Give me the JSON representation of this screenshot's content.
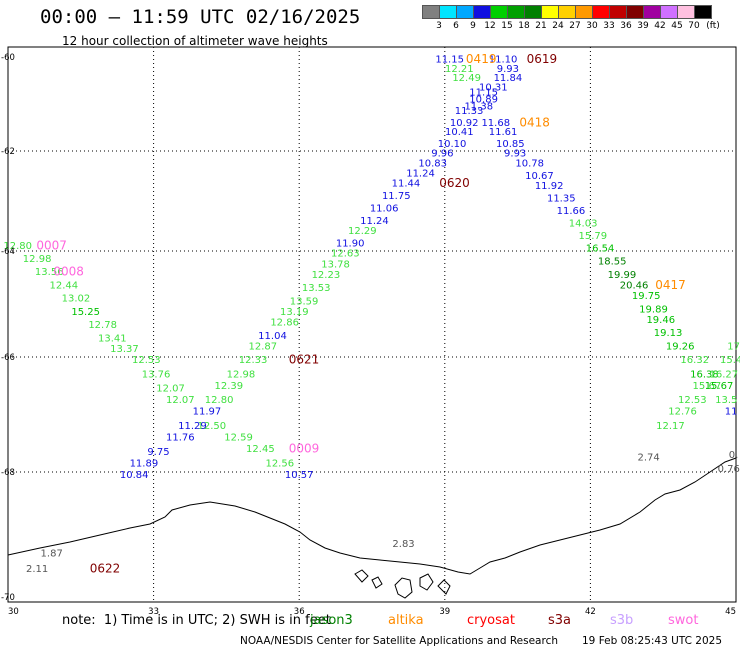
{
  "header": {
    "title": "00:00 – 11:59 UTC 02/16/2025",
    "subtitle": "12 hour collection of altimeter wave heights"
  },
  "colorbar": {
    "unit_label": "(ft)",
    "swatches": [
      {
        "label": "3",
        "color": "#808080"
      },
      {
        "label": "6",
        "color": "#00e5ff"
      },
      {
        "label": "9",
        "color": "#00a8ff"
      },
      {
        "label": "12",
        "color": "#1010e0"
      },
      {
        "label": "15",
        "color": "#00d000"
      },
      {
        "label": "18",
        "color": "#00a000"
      },
      {
        "label": "21",
        "color": "#008000"
      },
      {
        "label": "24",
        "color": "#ffff00"
      },
      {
        "label": "27",
        "color": "#ffd000"
      },
      {
        "label": "30",
        "color": "#ff9900"
      },
      {
        "label": "33",
        "color": "#ff0000"
      },
      {
        "label": "36",
        "color": "#c00000"
      },
      {
        "label": "39",
        "color": "#800000"
      },
      {
        "label": "42",
        "color": "#a000a0"
      },
      {
        "label": "45",
        "color": "#d070ff"
      },
      {
        "label": "70",
        "color": "#ffc0e0"
      },
      {
        "label": "",
        "color": "#000000"
      }
    ]
  },
  "axes": {
    "lat_labels": [
      "-60",
      "-62",
      "-64",
      "-66",
      "-68",
      "-70"
    ],
    "lon_labels": [
      "30",
      "33",
      "36",
      "39",
      "42",
      "45"
    ]
  },
  "observations": [
    {
      "text": "11.15",
      "lon": 39.1,
      "lat": -60.05,
      "color": "#1010e0"
    },
    {
      "text": "12.21",
      "lon": 39.3,
      "lat": -60.25,
      "color": "#40e040"
    },
    {
      "text": "12.49",
      "lon": 39.45,
      "lat": -60.45,
      "color": "#40e040"
    },
    {
      "text": "11.10",
      "lon": 40.2,
      "lat": -60.05,
      "color": "#1010e0"
    },
    {
      "text": "9.93",
      "lon": 40.3,
      "lat": -60.25,
      "color": "#1010e0"
    },
    {
      "text": "11.84",
      "lon": 40.3,
      "lat": -60.45,
      "color": "#1010e0"
    },
    {
      "text": "10.31",
      "lon": 40.0,
      "lat": -60.65,
      "color": "#1010e0"
    },
    {
      "text": "11.15",
      "lon": 39.8,
      "lat": -60.75,
      "color": "#1010e0"
    },
    {
      "text": "10.89",
      "lon": 39.8,
      "lat": -60.9,
      "color": "#1010e0"
    },
    {
      "text": "11.38",
      "lon": 39.7,
      "lat": -61.05,
      "color": "#1010e0"
    },
    {
      "text": "11.33",
      "lon": 39.5,
      "lat": -61.15,
      "color": "#1010e0"
    },
    {
      "text": "10.92",
      "lon": 39.4,
      "lat": -61.4,
      "color": "#1010e0"
    },
    {
      "text": "11.68",
      "lon": 40.05,
      "lat": -61.4,
      "color": "#1010e0"
    },
    {
      "text": "10.41",
      "lon": 39.3,
      "lat": -61.6,
      "color": "#1010e0"
    },
    {
      "text": "11.61",
      "lon": 40.2,
      "lat": -61.6,
      "color": "#1010e0"
    },
    {
      "text": "10.10",
      "lon": 39.15,
      "lat": -61.85,
      "color": "#1010e0"
    },
    {
      "text": "10.85",
      "lon": 40.35,
      "lat": -61.85,
      "color": "#1010e0"
    },
    {
      "text": "9.96",
      "lon": 38.95,
      "lat": -62.05,
      "color": "#1010e0"
    },
    {
      "text": "9.93",
      "lon": 40.45,
      "lat": -62.05,
      "color": "#1010e0"
    },
    {
      "text": "10.83",
      "lon": 38.75,
      "lat": -62.25,
      "color": "#1010e0"
    },
    {
      "text": "10.78",
      "lon": 40.75,
      "lat": -62.25,
      "color": "#1010e0"
    },
    {
      "text": "11.24",
      "lon": 38.5,
      "lat": -62.45,
      "color": "#1010e0"
    },
    {
      "text": "10.67",
      "lon": 40.95,
      "lat": -62.5,
      "color": "#1010e0"
    },
    {
      "text": "11.44",
      "lon": 38.2,
      "lat": -62.65,
      "color": "#1010e0"
    },
    {
      "text": "11.92",
      "lon": 41.15,
      "lat": -62.7,
      "color": "#1010e0"
    },
    {
      "text": "11.75",
      "lon": 38.0,
      "lat": -62.9,
      "color": "#1010e0"
    },
    {
      "text": "11.35",
      "lon": 41.4,
      "lat": -62.95,
      "color": "#1010e0"
    },
    {
      "text": "11.06",
      "lon": 37.75,
      "lat": -63.15,
      "color": "#1010e0"
    },
    {
      "text": "11.66",
      "lon": 41.6,
      "lat": -63.2,
      "color": "#1010e0"
    },
    {
      "text": "11.24",
      "lon": 37.55,
      "lat": -63.4,
      "color": "#1010e0"
    },
    {
      "text": "14.03",
      "lon": 41.85,
      "lat": -63.45,
      "color": "#40e040"
    },
    {
      "text": "12.29",
      "lon": 37.3,
      "lat": -63.6,
      "color": "#40e040"
    },
    {
      "text": "15.79",
      "lon": 42.05,
      "lat": -63.7,
      "color": "#40e040"
    },
    {
      "text": "11.90",
      "lon": 37.05,
      "lat": -63.85,
      "color": "#1010e0"
    },
    {
      "text": "16.54",
      "lon": 42.2,
      "lat": -63.95,
      "color": "#00c000"
    },
    {
      "text": "12.63",
      "lon": 36.95,
      "lat": -64.05,
      "color": "#40e040"
    },
    {
      "text": "18.55",
      "lon": 42.45,
      "lat": -64.2,
      "color": "#008000"
    },
    {
      "text": "13.78",
      "lon": 36.75,
      "lat": -64.25,
      "color": "#40e040"
    },
    {
      "text": "19.99",
      "lon": 42.65,
      "lat": -64.45,
      "color": "#008000"
    },
    {
      "text": "12.23",
      "lon": 36.55,
      "lat": -64.45,
      "color": "#40e040"
    },
    {
      "text": "20.46",
      "lon": 42.9,
      "lat": -64.65,
      "color": "#008000"
    },
    {
      "text": "13.53",
      "lon": 36.35,
      "lat": -64.7,
      "color": "#40e040"
    },
    {
      "text": "19.75",
      "lon": 43.15,
      "lat": -64.85,
      "color": "#00c000"
    },
    {
      "text": "13.59",
      "lon": 36.1,
      "lat": -64.95,
      "color": "#40e040"
    },
    {
      "text": "19.89",
      "lon": 43.3,
      "lat": -65.1,
      "color": "#00c000"
    },
    {
      "text": "13.19",
      "lon": 35.9,
      "lat": -65.15,
      "color": "#40e040"
    },
    {
      "text": "19.46",
      "lon": 43.45,
      "lat": -65.3,
      "color": "#00c000"
    },
    {
      "text": "12.86",
      "lon": 35.7,
      "lat": -65.35,
      "color": "#40e040"
    },
    {
      "text": "19.13",
      "lon": 43.6,
      "lat": -65.55,
      "color": "#00c000"
    },
    {
      "text": "11.04",
      "lon": 35.45,
      "lat": -65.6,
      "color": "#1010e0"
    },
    {
      "text": "19.26",
      "lon": 43.85,
      "lat": -65.8,
      "color": "#00c000"
    },
    {
      "text": "12.87",
      "lon": 35.25,
      "lat": -65.8,
      "color": "#40e040"
    },
    {
      "text": "12.33",
      "lon": 35.05,
      "lat": -66.05,
      "color": "#40e040"
    },
    {
      "text": "16.32",
      "lon": 44.15,
      "lat": -66.05,
      "color": "#40e040"
    },
    {
      "text": "12.98",
      "lon": 34.8,
      "lat": -66.3,
      "color": "#40e040"
    },
    {
      "text": "16.38",
      "lon": 44.35,
      "lat": -66.3,
      "color": "#00c000"
    },
    {
      "text": "16.27",
      "lon": 44.75,
      "lat": -66.3,
      "color": "#40e040"
    },
    {
      "text": "12.39",
      "lon": 34.55,
      "lat": -66.5,
      "color": "#40e040"
    },
    {
      "text": "15.67",
      "lon": 44.4,
      "lat": -66.5,
      "color": "#40e040"
    },
    {
      "text": "15.67",
      "lon": 44.65,
      "lat": -66.5,
      "color": "#00c000"
    },
    {
      "text": "12.80",
      "lon": 34.35,
      "lat": -66.75,
      "color": "#40e040"
    },
    {
      "text": "12.53",
      "lon": 44.1,
      "lat": -66.75,
      "color": "#40e040"
    },
    {
      "text": "11.97",
      "lon": 34.1,
      "lat": -66.95,
      "color": "#1010e0"
    },
    {
      "text": "12.76",
      "lon": 43.9,
      "lat": -66.95,
      "color": "#40e040"
    },
    {
      "text": "12.50",
      "lon": 34.2,
      "lat": -67.2,
      "color": "#40e040"
    },
    {
      "text": "12.17",
      "lon": 43.65,
      "lat": -67.2,
      "color": "#40e040"
    },
    {
      "text": "12.59",
      "lon": 34.75,
      "lat": -67.4,
      "color": "#40e040"
    },
    {
      "text": "12.45",
      "lon": 35.2,
      "lat": -67.6,
      "color": "#40e040"
    },
    {
      "text": "12.56",
      "lon": 35.6,
      "lat": -67.85,
      "color": "#40e040"
    },
    {
      "text": "10.57",
      "lon": 36.0,
      "lat": -68.05,
      "color": "#1010e0"
    },
    {
      "text": "12.80",
      "lon": 30.2,
      "lat": -63.9,
      "color": "#40e040"
    },
    {
      "text": "12.98",
      "lon": 30.6,
      "lat": -64.15,
      "color": "#40e040"
    },
    {
      "text": "13.56",
      "lon": 30.85,
      "lat": -64.4,
      "color": "#40e040"
    },
    {
      "text": "12.44",
      "lon": 31.15,
      "lat": -64.65,
      "color": "#40e040"
    },
    {
      "text": "13.02",
      "lon": 31.4,
      "lat": -64.9,
      "color": "#40e040"
    },
    {
      "text": "15.25",
      "lon": 31.6,
      "lat": -65.15,
      "color": "#00c000"
    },
    {
      "text": "12.78",
      "lon": 31.95,
      "lat": -65.4,
      "color": "#40e040"
    },
    {
      "text": "13.41",
      "lon": 32.15,
      "lat": -65.65,
      "color": "#40e040"
    },
    {
      "text": "13.37",
      "lon": 32.4,
      "lat": -65.85,
      "color": "#40e040"
    },
    {
      "text": "12.53",
      "lon": 32.85,
      "lat": -66.05,
      "color": "#40e040"
    },
    {
      "text": "13.76",
      "lon": 33.05,
      "lat": -66.3,
      "color": "#40e040"
    },
    {
      "text": "12.07",
      "lon": 33.35,
      "lat": -66.55,
      "color": "#40e040"
    },
    {
      "text": "12.07",
      "lon": 33.55,
      "lat": -66.75,
      "color": "#40e040"
    },
    {
      "text": "11.29",
      "lon": 33.8,
      "lat": -67.2,
      "color": "#1010e0"
    },
    {
      "text": "11.76",
      "lon": 33.55,
      "lat": -67.4,
      "color": "#1010e0"
    },
    {
      "text": "9.75",
      "lon": 33.1,
      "lat": -67.65,
      "color": "#1010e0"
    },
    {
      "text": "11.89",
      "lon": 32.8,
      "lat": -67.85,
      "color": "#1010e0"
    },
    {
      "text": "10.84",
      "lon": 32.6,
      "lat": -68.05,
      "color": "#1010e0"
    },
    {
      "text": "17",
      "lon": 44.95,
      "lat": -65.8,
      "color": "#40e040"
    },
    {
      "text": "15.4",
      "lon": 44.9,
      "lat": -66.05,
      "color": "#40e040"
    },
    {
      "text": "13.5",
      "lon": 44.8,
      "lat": -66.75,
      "color": "#40e040"
    },
    {
      "text": "11",
      "lon": 44.9,
      "lat": -66.95,
      "color": "#1010e0"
    },
    {
      "text": "2.74",
      "lon": 43.2,
      "lat": -67.75,
      "color": "#555555"
    },
    {
      "text": "0.",
      "lon": 44.95,
      "lat": -67.7,
      "color": "#555555"
    },
    {
      "text": "0.76",
      "lon": 44.85,
      "lat": -67.95,
      "color": "#555555"
    },
    {
      "text": "2.83",
      "lon": 38.15,
      "lat": -69.15,
      "color": "#555555"
    },
    {
      "text": "1.87",
      "lon": 30.9,
      "lat": -69.3,
      "color": "#555555"
    },
    {
      "text": "2.11",
      "lon": 30.6,
      "lat": -69.55,
      "color": "#555555"
    }
  ],
  "pass_labels": [
    {
      "text": "0419",
      "lon": 39.75,
      "lat": -60.05,
      "color": "#ff8c00"
    },
    {
      "text": "0619",
      "lon": 41.0,
      "lat": -60.05,
      "color": "#800000"
    },
    {
      "text": "0418",
      "lon": 40.85,
      "lat": -61.4,
      "color": "#ff8c00"
    },
    {
      "text": "0620",
      "lon": 39.2,
      "lat": -62.65,
      "color": "#800000"
    },
    {
      "text": "0007",
      "lon": 30.9,
      "lat": -63.9,
      "color": "#ff66dd"
    },
    {
      "text": "0008",
      "lon": 31.25,
      "lat": -64.4,
      "color": "#ff66dd"
    },
    {
      "text": "0417",
      "lon": 43.65,
      "lat": -64.65,
      "color": "#ff8c00"
    },
    {
      "text": "0621",
      "lon": 36.1,
      "lat": -66.05,
      "color": "#800000"
    },
    {
      "text": "0009",
      "lon": 36.1,
      "lat": -67.6,
      "color": "#ff66dd"
    },
    {
      "text": "0622",
      "lon": 32.0,
      "lat": -69.55,
      "color": "#800000"
    }
  ],
  "footer": {
    "note": "note:  1) Time is in UTC; 2) SWH is in feet",
    "satellites": [
      {
        "name": "jason3",
        "color": "#008000"
      },
      {
        "name": "altika",
        "color": "#ff8c00"
      },
      {
        "name": "cryosat",
        "color": "#ff0000"
      },
      {
        "name": "s3a",
        "color": "#800000"
      },
      {
        "name": "s3b",
        "color": "#c8a0ff"
      },
      {
        "name": "swot",
        "color": "#ff66dd"
      }
    ],
    "credit": "NOAA/NESDIS Center for Satellite Applications and Research",
    "timestamp": "19 Feb 08:25:43 UTC 2025"
  }
}
